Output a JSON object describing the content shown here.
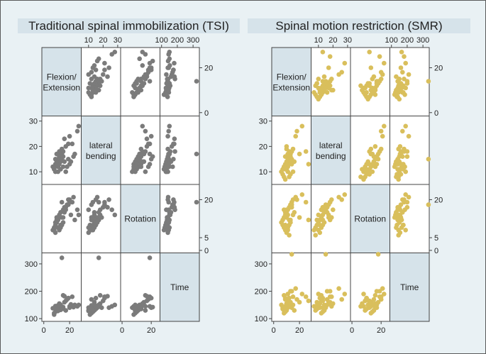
{
  "chart_data": [
    {
      "type": "scatter-matrix",
      "title": "Traditional spinal immobilization (TSI)",
      "color": "#7b7b7b",
      "variables": [
        "Flexion/ Extension",
        "lateral bending",
        "Rotation",
        "Time"
      ],
      "axis_ranges": [
        [
          -1.5,
          29
        ],
        [
          5,
          32
        ],
        [
          -1,
          26
        ],
        [
          90,
          340
        ]
      ],
      "ticks": {
        "top": {
          "1": [
            10,
            20,
            30
          ],
          "3": [
            100,
            200,
            300
          ]
        },
        "right": {
          "0": [
            20,
            0
          ],
          "2": [
            20,
            5,
            0
          ]
        },
        "left": {
          "1": [
            30,
            20,
            10
          ],
          "3": [
            300,
            200,
            100
          ]
        },
        "bottom": {
          "0": [
            0,
            20
          ],
          "2": [
            0,
            20
          ]
        }
      },
      "observations": [
        [
          14,
          17,
          19,
          322
        ],
        [
          27,
          28,
          14,
          150
        ],
        [
          26,
          26,
          16,
          145
        ],
        [
          20,
          24,
          20,
          140
        ],
        [
          22,
          21,
          19,
          180
        ],
        [
          19,
          21,
          18,
          175
        ],
        [
          17,
          20,
          17,
          165
        ],
        [
          15,
          18,
          16,
          185
        ],
        [
          13,
          17,
          15,
          150
        ],
        [
          12,
          16,
          13,
          140
        ],
        [
          11,
          15,
          12,
          135
        ],
        [
          10,
          14,
          11,
          130
        ],
        [
          9,
          13,
          10,
          125
        ],
        [
          8,
          12,
          9,
          120
        ],
        [
          8,
          11,
          8,
          115
        ],
        [
          9,
          10,
          7,
          140
        ],
        [
          12,
          13,
          8,
          145
        ],
        [
          13,
          14,
          9,
          150
        ],
        [
          14,
          15,
          10,
          138
        ],
        [
          15,
          16,
          11,
          142
        ],
        [
          11,
          12,
          12,
          148
        ],
        [
          10,
          13,
          13,
          135
        ],
        [
          12,
          18,
          14,
          155
        ],
        [
          16,
          14,
          15,
          160
        ],
        [
          18,
          12,
          18,
          170
        ],
        [
          20,
          13,
          19,
          145
        ],
        [
          23,
          16,
          21,
          142
        ],
        [
          24,
          17,
          12,
          150
        ],
        [
          13,
          11,
          10,
          132
        ],
        [
          11,
          10,
          9,
          128
        ],
        [
          14,
          19,
          13,
          140
        ],
        [
          16,
          23,
          17,
          182
        ],
        [
          19,
          15,
          20,
          175
        ],
        [
          21,
          14,
          14,
          152
        ],
        [
          7,
          12,
          8,
          138
        ],
        [
          9,
          15,
          11,
          146
        ],
        [
          10,
          17,
          12,
          144
        ],
        [
          15,
          12,
          13,
          136
        ],
        [
          17,
          10,
          16,
          130
        ]
      ]
    },
    {
      "type": "scatter-matrix",
      "title": "Spinal motion restriction (SMR)",
      "color": "#d9bf5c",
      "variables": [
        "Flexion/ Extension",
        "lateral bending",
        "Rotation",
        "Time"
      ],
      "axis_ranges": [
        [
          -1.5,
          29
        ],
        [
          5,
          32
        ],
        [
          -1,
          26
        ],
        [
          90,
          340
        ]
      ],
      "ticks": {
        "top": {
          "1": [
            10,
            20,
            30
          ],
          "3": [
            100,
            200,
            300
          ]
        },
        "right": {
          "0": [
            20,
            0
          ],
          "2": [
            20,
            5,
            0
          ]
        },
        "left": {
          "1": [
            30,
            20,
            10
          ],
          "3": [
            300,
            200,
            100
          ]
        },
        "bottom": {
          "0": [
            0,
            20
          ],
          "2": [
            0,
            20
          ]
        }
      },
      "observations": [
        [
          14,
          15,
          18,
          335
        ],
        [
          22,
          28,
          22,
          190
        ],
        [
          18,
          26,
          20,
          170
        ],
        [
          17,
          24,
          21,
          210
        ],
        [
          15,
          19,
          20,
          180
        ],
        [
          14,
          18,
          19,
          200
        ],
        [
          13,
          17,
          18,
          160
        ],
        [
          12,
          16,
          17,
          150
        ],
        [
          11,
          15,
          16,
          140
        ],
        [
          10,
          14,
          15,
          130
        ],
        [
          9,
          13,
          14,
          125
        ],
        [
          8,
          12,
          13,
          120
        ],
        [
          7,
          11,
          12,
          140
        ],
        [
          6,
          10,
          11,
          150
        ],
        [
          7,
          9,
          10,
          135
        ],
        [
          8,
          8,
          9,
          130
        ],
        [
          9,
          7,
          8,
          145
        ],
        [
          10,
          11,
          7,
          155
        ],
        [
          11,
          12,
          9,
          165
        ],
        [
          12,
          13,
          10,
          175
        ],
        [
          13,
          14,
          11,
          150
        ],
        [
          12,
          18,
          12,
          160
        ],
        [
          10,
          19,
          13,
          145
        ],
        [
          11,
          17,
          14,
          155
        ],
        [
          9,
          16,
          15,
          170
        ],
        [
          8,
          12,
          16,
          185
        ],
        [
          14,
          13,
          17,
          140
        ],
        [
          16,
          14,
          15,
          130
        ],
        [
          15,
          10,
          14,
          150
        ],
        [
          13,
          9,
          12,
          160
        ],
        [
          12,
          8,
          6,
          145
        ],
        [
          20,
          17,
          13,
          160
        ],
        [
          25,
          18,
          19,
          180
        ],
        [
          27,
          13,
          12,
          165
        ],
        [
          11,
          10,
          8,
          190
        ],
        [
          9,
          11,
          10,
          175
        ],
        [
          10,
          20,
          16,
          155
        ],
        [
          13,
          16,
          17,
          200
        ]
      ]
    }
  ]
}
